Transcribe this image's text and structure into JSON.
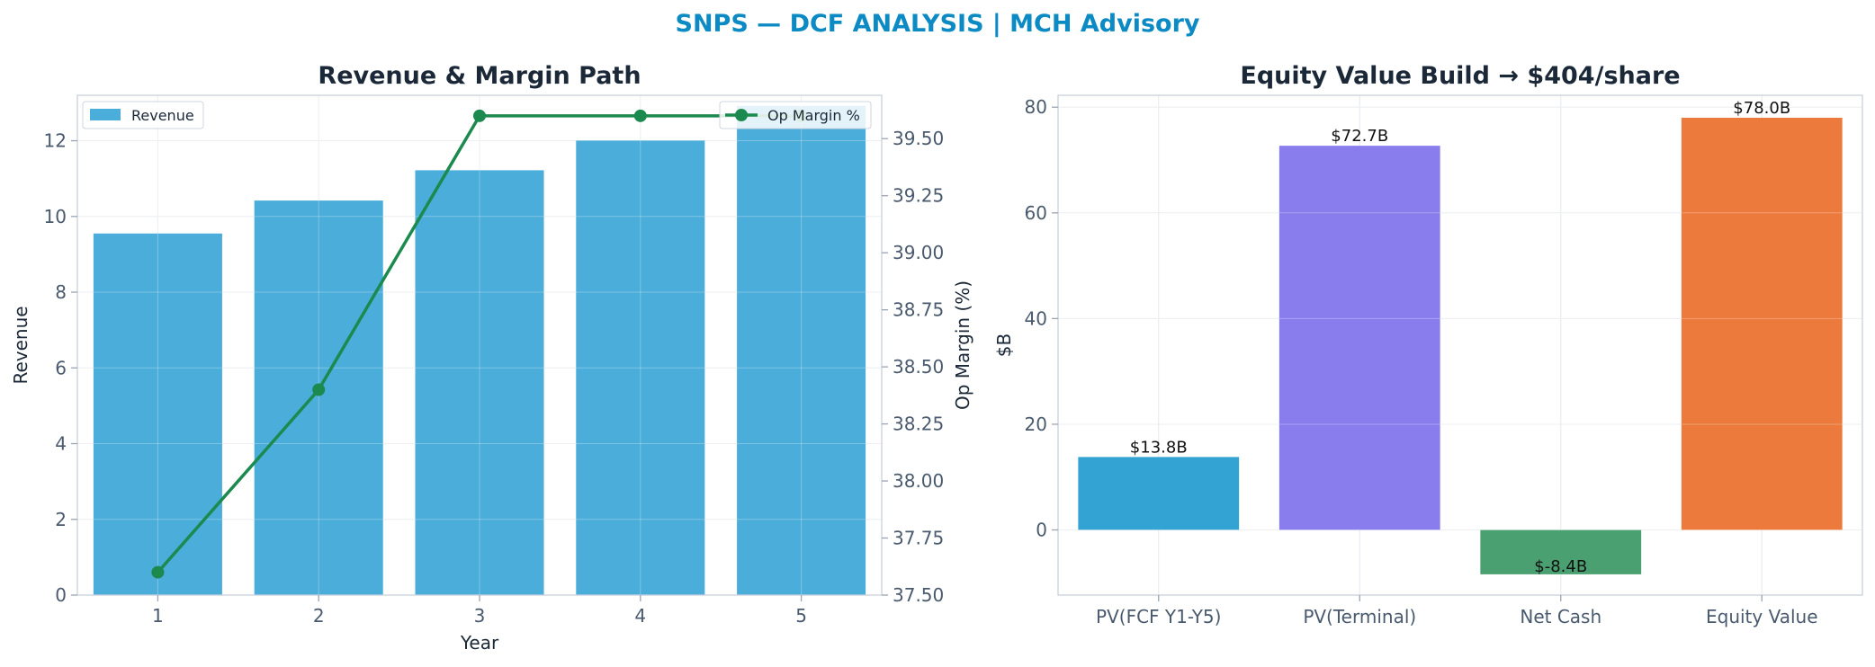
{
  "figure": {
    "suptitle": "SNPS — DCF ANALYSIS | MCH Advisory"
  },
  "chart_data": [
    {
      "type": "bar",
      "title": "Revenue & Margin Path",
      "xlabel": "Year",
      "ylabel": "Revenue",
      "y2label": "Op Margin (%)",
      "categories": [
        "1",
        "2",
        "3",
        "4",
        "5"
      ],
      "ylim": [
        0,
        13.2
      ],
      "yticks": [
        0,
        2,
        4,
        6,
        8,
        10,
        12
      ],
      "y2lim": [
        37.5,
        39.69
      ],
      "y2ticks": [
        "37.50",
        "37.75",
        "38.00",
        "38.25",
        "38.50",
        "38.75",
        "39.00",
        "39.25",
        "39.50"
      ],
      "grid": true,
      "series": [
        {
          "name": "Revenue",
          "kind": "bar",
          "axis": "left",
          "color": "#4badda",
          "values": [
            9.55,
            10.42,
            11.22,
            12.01,
            12.92
          ]
        },
        {
          "name": "Op Margin %",
          "kind": "line",
          "axis": "right",
          "color": "#1c8a4f",
          "values": [
            37.6,
            38.4,
            39.6,
            39.6,
            39.6
          ]
        }
      ],
      "legend": [
        {
          "name": "Revenue",
          "placement": "upper-left"
        },
        {
          "name": "Op Margin %",
          "placement": "upper-right"
        }
      ]
    },
    {
      "type": "bar",
      "title": "Equity Value Build → $404/share",
      "xlabel": "",
      "ylabel": "$B",
      "categories": [
        "PV(FCF Y1-Y5)",
        "PV(Terminal)",
        "Net Cash",
        "Equity Value"
      ],
      "values": [
        13.8,
        72.7,
        -8.4,
        78.0
      ],
      "data_labels": [
        "$13.8B",
        "$72.7B",
        "$-8.4B",
        "$78.0B"
      ],
      "colors": [
        "#33a3d3",
        "#897ded",
        "#4aa070",
        "#ec7a3d"
      ],
      "ylim": [
        -12.33,
        82.25
      ],
      "yticks": [
        0,
        20,
        40,
        60,
        80
      ],
      "grid": true
    }
  ]
}
